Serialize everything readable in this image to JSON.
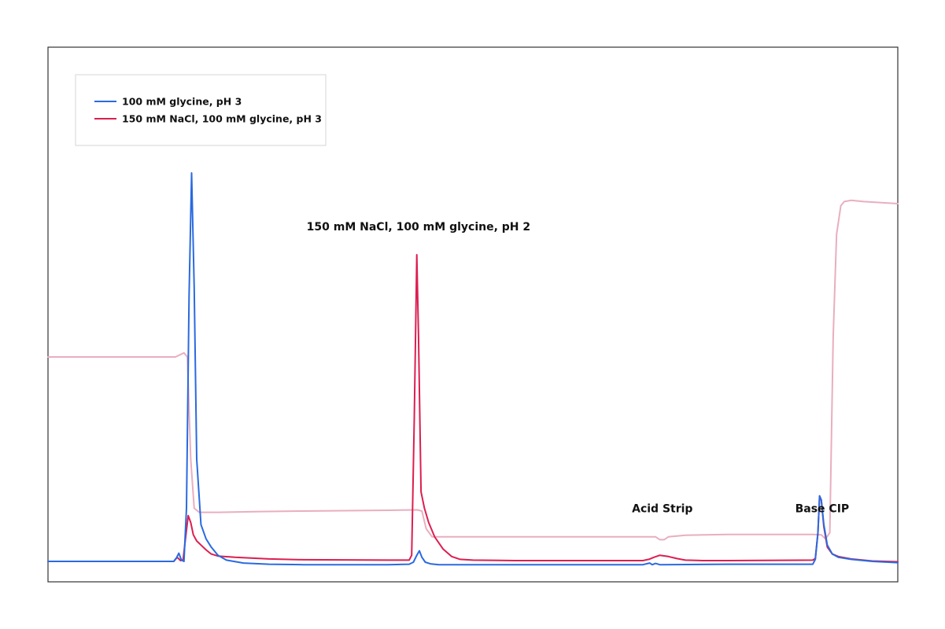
{
  "chart_data": {
    "type": "line",
    "title": "",
    "xlabel": "",
    "ylabel": "",
    "grid": false,
    "legend_position": "top-left",
    "xlim": [
      0,
      100
    ],
    "ylim": [
      0,
      100
    ],
    "series": [
      {
        "name": "100 mM glycine, pH 3",
        "color": "#2a6ae0",
        "x": [
          0,
          14.8,
          15.1,
          15.4,
          15.7,
          16.0,
          16.3,
          16.6,
          16.9,
          17.2,
          17.5,
          18.0,
          18.6,
          19.2,
          20.0,
          21.0,
          23.0,
          26.0,
          30.0,
          40.0,
          42.5,
          43.0,
          43.4,
          43.7,
          44.0,
          44.4,
          45.0,
          46.0,
          50.0,
          60.0,
          70.0,
          70.8,
          71.1,
          71.5,
          72.0,
          80.0,
          90.0,
          90.3,
          90.6,
          90.8,
          91.0,
          91.3,
          91.7,
          92.3,
          93.0,
          94.5,
          97.0,
          100.0
        ],
        "y": [
          5.0,
          5.0,
          5.8,
          7.0,
          5.3,
          5.0,
          18.0,
          70.0,
          100.0,
          72.0,
          30.0,
          14.0,
          10.5,
          8.5,
          6.5,
          5.3,
          4.6,
          4.3,
          4.2,
          4.2,
          4.3,
          4.8,
          6.5,
          7.6,
          6.0,
          4.8,
          4.4,
          4.2,
          4.2,
          4.2,
          4.2,
          4.6,
          4.2,
          4.5,
          4.2,
          4.3,
          4.3,
          5.5,
          12.0,
          21.0,
          20.0,
          14.0,
          9.0,
          6.8,
          6.0,
          5.5,
          5.0,
          4.7
        ]
      },
      {
        "name": "150 mM NaCl, 100 mM glycine, pH 3",
        "color": "#dc1e50",
        "x": [
          0,
          14.8,
          15.2,
          15.6,
          15.9,
          16.2,
          16.5,
          16.8,
          17.1,
          17.5,
          18.0,
          18.6,
          19.2,
          20.0,
          22.0,
          26.0,
          30.0,
          40.0,
          42.5,
          42.8,
          43.1,
          43.4,
          43.6,
          43.9,
          44.3,
          44.8,
          45.5,
          46.5,
          47.5,
          48.5,
          50.0,
          55.0,
          60.0,
          70.0,
          70.7,
          71.3,
          72.0,
          73.0,
          74.0,
          75.0,
          77.0,
          80.0,
          90.0,
          90.3,
          90.6,
          90.8,
          91.0,
          91.3,
          91.7,
          92.3,
          93.0,
          94.5,
          97.0,
          100.0
        ],
        "y": [
          5.0,
          5.0,
          6.0,
          5.2,
          5.4,
          11.0,
          16.2,
          14.5,
          11.5,
          10.0,
          9.0,
          7.8,
          6.8,
          6.3,
          6.0,
          5.6,
          5.4,
          5.3,
          5.3,
          6.5,
          40.0,
          80.0,
          60.0,
          22.0,
          18.0,
          14.5,
          11.0,
          8.0,
          6.2,
          5.5,
          5.3,
          5.2,
          5.2,
          5.2,
          5.5,
          6.0,
          6.5,
          6.2,
          5.7,
          5.3,
          5.2,
          5.2,
          5.3,
          5.7,
          12.0,
          21.0,
          20.0,
          13.5,
          8.5,
          6.8,
          6.2,
          5.6,
          5.1,
          4.9
        ]
      },
      {
        "name": "",
        "color": "#e9aebf",
        "x": [
          0,
          15.0,
          16.0,
          16.4,
          16.8,
          17.2,
          17.8,
          20.0,
          25.0,
          30.0,
          40.0,
          43.5,
          44.0,
          44.5,
          45.2,
          46.0,
          47.5,
          50.0,
          60.0,
          70.0,
          71.5,
          72.0,
          72.5,
          73.0,
          75.0,
          80.0,
          90.0,
          91.0,
          91.5,
          92.0,
          92.4,
          92.8,
          93.3,
          93.7,
          94.5,
          96.0,
          100.0
        ],
        "y": [
          55.0,
          55.0,
          56.0,
          55.0,
          30.0,
          18.0,
          17.0,
          17.0,
          17.2,
          17.3,
          17.5,
          17.6,
          17.3,
          13.0,
          11.0,
          11.0,
          11.0,
          11.0,
          11.0,
          11.0,
          11.0,
          10.3,
          10.3,
          11.0,
          11.4,
          11.6,
          11.6,
          11.5,
          10.5,
          12.0,
          60.0,
          85.0,
          92.0,
          93.0,
          93.3,
          93.0,
          92.5
        ]
      }
    ],
    "annotations": [
      {
        "text": "150 mM NaCl, 100 mM glycine, pH 2",
        "x": 43.6,
        "y": 86.0
      },
      {
        "text": "Acid Strip",
        "x": 72.3,
        "y": 17.0
      },
      {
        "text": "Base CIP",
        "x": 91.1,
        "y": 17.0
      }
    ]
  }
}
